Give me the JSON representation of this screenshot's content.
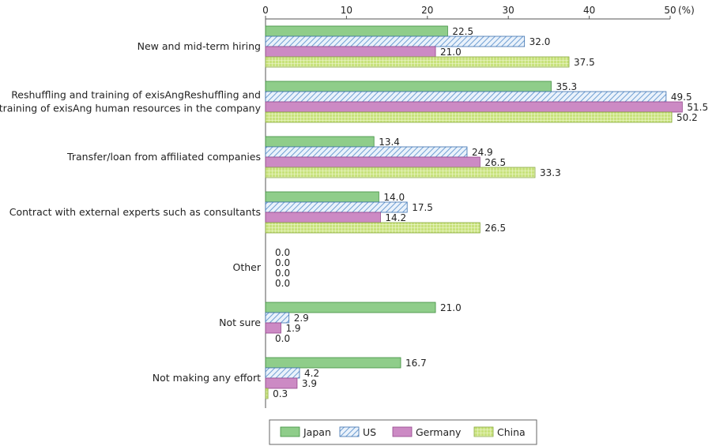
{
  "chart_data": {
    "type": "bar",
    "orientation": "horizontal",
    "x_unit_label": "(%)",
    "xlim": [
      0,
      50
    ],
    "x_ticks": [
      "0",
      "10",
      "20",
      "30",
      "40",
      "50"
    ],
    "grid": false,
    "legend_position": "bottom",
    "categories": [
      [
        "New and mid-term hiring"
      ],
      [
        "Reshuffling and training of exisAngReshuffling and",
        "training of exisAng human resources in the company"
      ],
      [
        "Transfer/loan from affiliated companies"
      ],
      [
        "Contract with external experts such as consultants"
      ],
      [
        "Other"
      ],
      [
        "Not sure"
      ],
      [
        "Not making any effort"
      ]
    ],
    "series": [
      {
        "name": "Japan",
        "color": "#8fcd8a",
        "pattern": "solid",
        "values": [
          22.5,
          35.3,
          13.4,
          14.0,
          0.0,
          21.0,
          16.7
        ]
      },
      {
        "name": "US",
        "color": "#7fa8d6",
        "pattern": "hatch",
        "values": [
          32.0,
          49.5,
          24.9,
          17.5,
          0.0,
          2.9,
          4.2
        ]
      },
      {
        "name": "Germany",
        "color": "#cc8ac4",
        "pattern": "solid",
        "values": [
          21.0,
          51.5,
          26.5,
          14.2,
          0.0,
          1.9,
          3.9
        ]
      },
      {
        "name": "China",
        "color": "#c5e07a",
        "pattern": "grid",
        "values": [
          37.5,
          50.2,
          33.3,
          26.5,
          0.0,
          0.0,
          0.3
        ]
      }
    ]
  }
}
